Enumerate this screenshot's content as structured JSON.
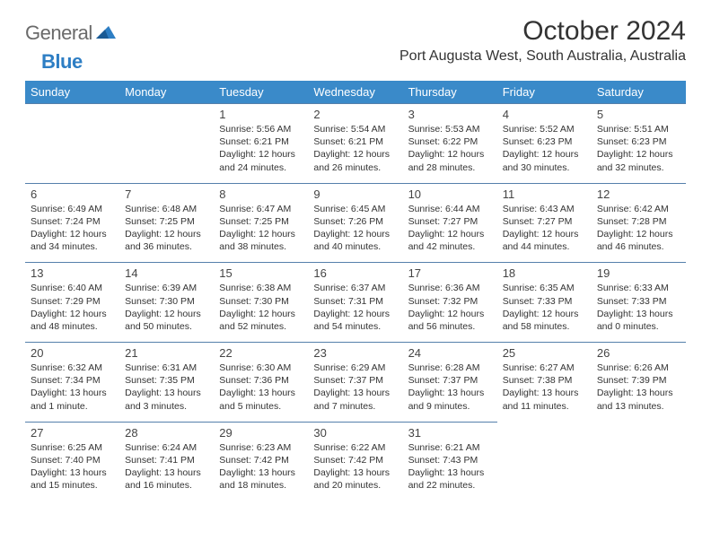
{
  "logo": {
    "word1": "General",
    "word2": "Blue"
  },
  "title": "October 2024",
  "location": "Port Augusta West, South Australia, Australia",
  "colors": {
    "header_bg": "#3a8ac9",
    "header_text": "#ffffff",
    "row_border": "#5580ab",
    "logo_gray": "#6a6a6a",
    "logo_blue": "#2d7ec4",
    "text": "#333333"
  },
  "day_headers": [
    "Sunday",
    "Monday",
    "Tuesday",
    "Wednesday",
    "Thursday",
    "Friday",
    "Saturday"
  ],
  "weeks": [
    [
      null,
      null,
      {
        "n": "1",
        "sunrise": "5:56 AM",
        "sunset": "6:21 PM",
        "daylight": "12 hours and 24 minutes."
      },
      {
        "n": "2",
        "sunrise": "5:54 AM",
        "sunset": "6:21 PM",
        "daylight": "12 hours and 26 minutes."
      },
      {
        "n": "3",
        "sunrise": "5:53 AM",
        "sunset": "6:22 PM",
        "daylight": "12 hours and 28 minutes."
      },
      {
        "n": "4",
        "sunrise": "5:52 AM",
        "sunset": "6:23 PM",
        "daylight": "12 hours and 30 minutes."
      },
      {
        "n": "5",
        "sunrise": "5:51 AM",
        "sunset": "6:23 PM",
        "daylight": "12 hours and 32 minutes."
      }
    ],
    [
      {
        "n": "6",
        "sunrise": "6:49 AM",
        "sunset": "7:24 PM",
        "daylight": "12 hours and 34 minutes."
      },
      {
        "n": "7",
        "sunrise": "6:48 AM",
        "sunset": "7:25 PM",
        "daylight": "12 hours and 36 minutes."
      },
      {
        "n": "8",
        "sunrise": "6:47 AM",
        "sunset": "7:25 PM",
        "daylight": "12 hours and 38 minutes."
      },
      {
        "n": "9",
        "sunrise": "6:45 AM",
        "sunset": "7:26 PM",
        "daylight": "12 hours and 40 minutes."
      },
      {
        "n": "10",
        "sunrise": "6:44 AM",
        "sunset": "7:27 PM",
        "daylight": "12 hours and 42 minutes."
      },
      {
        "n": "11",
        "sunrise": "6:43 AM",
        "sunset": "7:27 PM",
        "daylight": "12 hours and 44 minutes."
      },
      {
        "n": "12",
        "sunrise": "6:42 AM",
        "sunset": "7:28 PM",
        "daylight": "12 hours and 46 minutes."
      }
    ],
    [
      {
        "n": "13",
        "sunrise": "6:40 AM",
        "sunset": "7:29 PM",
        "daylight": "12 hours and 48 minutes."
      },
      {
        "n": "14",
        "sunrise": "6:39 AM",
        "sunset": "7:30 PM",
        "daylight": "12 hours and 50 minutes."
      },
      {
        "n": "15",
        "sunrise": "6:38 AM",
        "sunset": "7:30 PM",
        "daylight": "12 hours and 52 minutes."
      },
      {
        "n": "16",
        "sunrise": "6:37 AM",
        "sunset": "7:31 PM",
        "daylight": "12 hours and 54 minutes."
      },
      {
        "n": "17",
        "sunrise": "6:36 AM",
        "sunset": "7:32 PM",
        "daylight": "12 hours and 56 minutes."
      },
      {
        "n": "18",
        "sunrise": "6:35 AM",
        "sunset": "7:33 PM",
        "daylight": "12 hours and 58 minutes."
      },
      {
        "n": "19",
        "sunrise": "6:33 AM",
        "sunset": "7:33 PM",
        "daylight": "13 hours and 0 minutes."
      }
    ],
    [
      {
        "n": "20",
        "sunrise": "6:32 AM",
        "sunset": "7:34 PM",
        "daylight": "13 hours and 1 minute."
      },
      {
        "n": "21",
        "sunrise": "6:31 AM",
        "sunset": "7:35 PM",
        "daylight": "13 hours and 3 minutes."
      },
      {
        "n": "22",
        "sunrise": "6:30 AM",
        "sunset": "7:36 PM",
        "daylight": "13 hours and 5 minutes."
      },
      {
        "n": "23",
        "sunrise": "6:29 AM",
        "sunset": "7:37 PM",
        "daylight": "13 hours and 7 minutes."
      },
      {
        "n": "24",
        "sunrise": "6:28 AM",
        "sunset": "7:37 PM",
        "daylight": "13 hours and 9 minutes."
      },
      {
        "n": "25",
        "sunrise": "6:27 AM",
        "sunset": "7:38 PM",
        "daylight": "13 hours and 11 minutes."
      },
      {
        "n": "26",
        "sunrise": "6:26 AM",
        "sunset": "7:39 PM",
        "daylight": "13 hours and 13 minutes."
      }
    ],
    [
      {
        "n": "27",
        "sunrise": "6:25 AM",
        "sunset": "7:40 PM",
        "daylight": "13 hours and 15 minutes."
      },
      {
        "n": "28",
        "sunrise": "6:24 AM",
        "sunset": "7:41 PM",
        "daylight": "13 hours and 16 minutes."
      },
      {
        "n": "29",
        "sunrise": "6:23 AM",
        "sunset": "7:42 PM",
        "daylight": "13 hours and 18 minutes."
      },
      {
        "n": "30",
        "sunrise": "6:22 AM",
        "sunset": "7:42 PM",
        "daylight": "13 hours and 20 minutes."
      },
      {
        "n": "31",
        "sunrise": "6:21 AM",
        "sunset": "7:43 PM",
        "daylight": "13 hours and 22 minutes."
      },
      null,
      null
    ]
  ],
  "labels": {
    "sunrise": "Sunrise:",
    "sunset": "Sunset:",
    "daylight": "Daylight:"
  }
}
